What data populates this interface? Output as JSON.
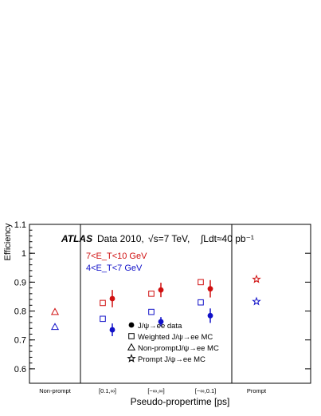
{
  "chart_data": {
    "type": "scatter",
    "ylabel": "Efficiency",
    "xlabel": "Pseudo-propertime [ps]",
    "ylim": [
      0.55,
      1.1
    ],
    "y_ticks": [
      0.6,
      0.7,
      0.8,
      0.9,
      1,
      1.1
    ],
    "y_tick_labels": [
      "0.6",
      "0.7",
      "0.8",
      "0.9",
      "1",
      "1.1"
    ],
    "categories": [
      "Non-prompt",
      "[0.1,∞]",
      "[−∞,∞]",
      "[−∞,0.1]",
      "Prompt"
    ],
    "header": {
      "experiment": "ATLAS",
      "dataset": "Data 2010,",
      "energy": "√s=7 TeV,",
      "lumi": "∫Ldt≈40 pb⁻¹"
    },
    "bin_legend": [
      {
        "label": "7<E_T<10 GeV",
        "color": "#d01010"
      },
      {
        "label": "4<E_T<7 GeV",
        "color": "#1010c8"
      }
    ],
    "marker_legend": [
      {
        "marker": "filled-circle",
        "label": "J/ψ→ee data"
      },
      {
        "marker": "open-square",
        "label": "Weighted J/ψ→ee MC"
      },
      {
        "marker": "open-triangle",
        "label": "Non-promptJ/ψ→ee  MC"
      },
      {
        "marker": "open-star",
        "label": "Prompt J/ψ→ee MC"
      }
    ],
    "series": [
      {
        "bin": "7<E_T<10 GeV",
        "kind": "data",
        "marker": "filled-circle",
        "color": "#d01010",
        "points": [
          {
            "x": "[0.1,∞]",
            "y": 0.843,
            "err": 0.03
          },
          {
            "x": "[−∞,∞]",
            "y": 0.873,
            "err": 0.025
          },
          {
            "x": "[−∞,0.1]",
            "y": 0.877,
            "err": 0.03
          }
        ]
      },
      {
        "bin": "4<E_T<7 GeV",
        "kind": "data",
        "marker": "filled-circle",
        "color": "#1010c8",
        "points": [
          {
            "x": "[0.1,∞]",
            "y": 0.735,
            "err": 0.022
          },
          {
            "x": "[−∞,∞]",
            "y": 0.763,
            "err": 0.016
          },
          {
            "x": "[−∞,0.1]",
            "y": 0.784,
            "err": 0.025
          }
        ]
      },
      {
        "bin": "7<E_T<10 GeV",
        "kind": "weighted-mc",
        "marker": "open-square",
        "color": "#d01010",
        "points": [
          {
            "x": "[0.1,∞]",
            "y": 0.828
          },
          {
            "x": "[−∞,∞]",
            "y": 0.86
          },
          {
            "x": "[−∞,0.1]",
            "y": 0.9
          }
        ]
      },
      {
        "bin": "4<E_T<7 GeV",
        "kind": "weighted-mc",
        "marker": "open-square",
        "color": "#1010c8",
        "points": [
          {
            "x": "[0.1,∞]",
            "y": 0.773
          },
          {
            "x": "[−∞,∞]",
            "y": 0.797
          },
          {
            "x": "[−∞,0.1]",
            "y": 0.83
          }
        ]
      },
      {
        "bin": "7<E_T<10 GeV",
        "kind": "non-prompt-mc",
        "marker": "open-triangle",
        "color": "#d01010",
        "points": [
          {
            "x": "Non-prompt",
            "y": 0.797
          }
        ]
      },
      {
        "bin": "4<E_T<7 GeV",
        "kind": "non-prompt-mc",
        "marker": "open-triangle",
        "color": "#1010c8",
        "points": [
          {
            "x": "Non-prompt",
            "y": 0.745
          }
        ]
      },
      {
        "bin": "7<E_T<10 GeV",
        "kind": "prompt-mc",
        "marker": "open-star",
        "color": "#d01010",
        "points": [
          {
            "x": "Prompt",
            "y": 0.91
          }
        ]
      },
      {
        "bin": "4<E_T<7 GeV",
        "kind": "prompt-mc",
        "marker": "open-star",
        "color": "#1010c8",
        "points": [
          {
            "x": "Prompt",
            "y": 0.833
          }
        ]
      }
    ]
  }
}
